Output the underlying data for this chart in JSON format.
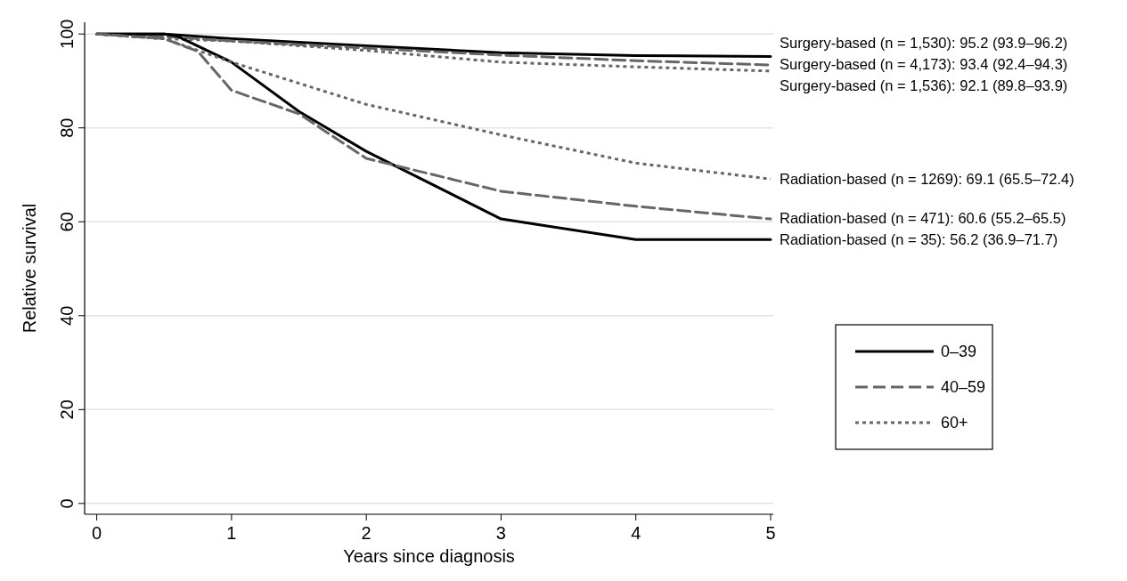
{
  "chart_data": {
    "type": "line",
    "xlabel": "Years since diagnosis",
    "ylabel": "Relative survival",
    "xlim": [
      -0.09,
      5.02
    ],
    "ylim": [
      -2.3,
      102.5
    ],
    "xticks": [
      0,
      1,
      2,
      3,
      4,
      5
    ],
    "yticks": [
      0,
      20,
      40,
      60,
      80,
      100
    ],
    "grid": "y",
    "legend": "right",
    "marker": "none",
    "series": [
      {
        "name": "0–39",
        "color": "#000000",
        "line_style": "solid",
        "x": [
          0,
          0.5,
          1,
          2,
          3,
          4,
          5
        ],
        "values": [
          100,
          100,
          99,
          97.5,
          96,
          95.4,
          95.2
        ]
      },
      {
        "name": "40–59",
        "color": "#666666",
        "line_style": "dashed",
        "x": [
          0,
          0.5,
          1,
          2,
          3,
          4,
          5
        ],
        "values": [
          100,
          99.5,
          98.5,
          97,
          95.5,
          94.3,
          93.4
        ]
      },
      {
        "name": "60+",
        "color": "#666666",
        "line_style": "dotted",
        "x": [
          0,
          0.5,
          1,
          2,
          3,
          4,
          5
        ],
        "values": [
          100,
          99,
          98.5,
          96.5,
          94,
          93,
          92.1
        ]
      },
      {
        "color": "#000000",
        "line_style": "solid",
        "x": [
          0,
          0.5,
          0.6,
          1,
          1.5,
          2,
          3,
          4,
          5
        ],
        "values": [
          100,
          100,
          99.5,
          94,
          83.5,
          75,
          60.6,
          56.2,
          56.2
        ]
      },
      {
        "color": "#666666",
        "line_style": "dashed",
        "x": [
          0,
          0.5,
          0.75,
          1,
          1.5,
          2,
          3,
          4,
          5
        ],
        "values": [
          100,
          99,
          96.3,
          88,
          83,
          73.5,
          66.5,
          63.3,
          60.6
        ]
      },
      {
        "color": "#666666",
        "line_style": "dotted",
        "x": [
          0,
          0.5,
          1,
          1.5,
          2,
          3,
          4,
          5
        ],
        "values": [
          100,
          99,
          94,
          89.5,
          85,
          78.5,
          72.5,
          69.1
        ]
      }
    ],
    "annotations": [
      "Surgery-based (n = 1,530): 95.2 (93.9–96.2)",
      "Surgery-based (n = 4,173): 93.4 (92.4–94.3)",
      "Surgery-based (n = 1,536): 92.1 (89.8–93.9)",
      "Radiation-based (n = 1269): 69.1 (65.5–72.4)",
      "Radiation-based (n = 471): 60.6 (55.2–65.5)",
      "Radiation-based (n = 35): 56.2 (36.9–71.7)"
    ]
  }
}
